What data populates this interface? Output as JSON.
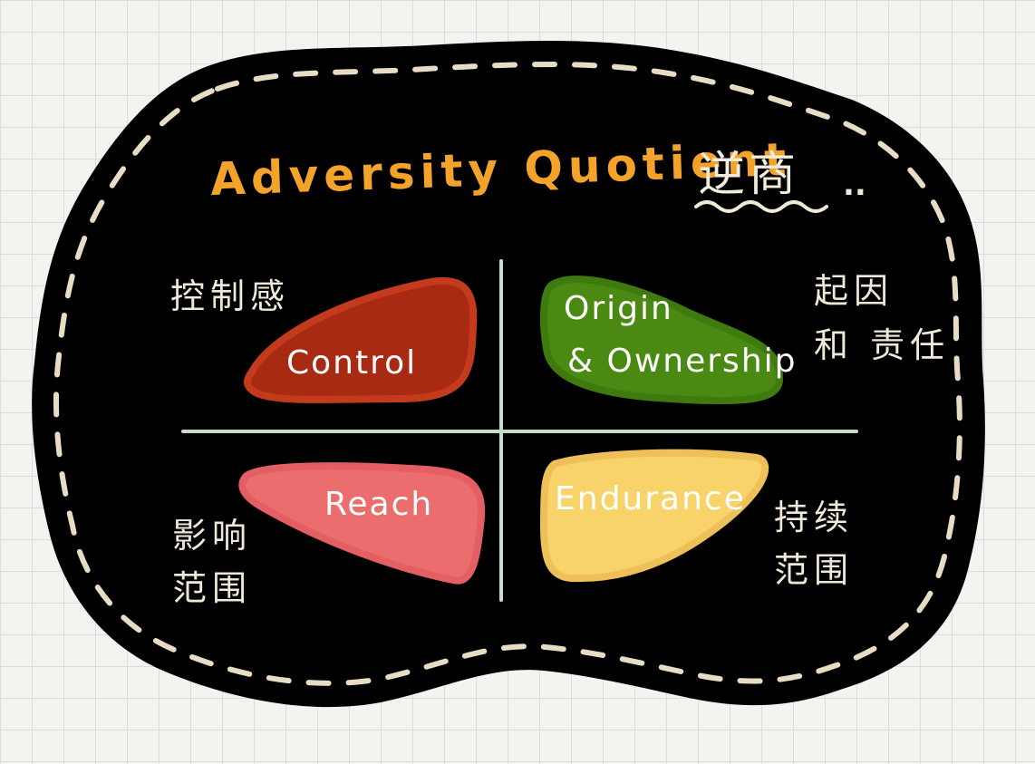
{
  "title": "Adversity Quotient",
  "title_cn": "逆商",
  "title_suffix": "..",
  "quadrants": {
    "control": {
      "label": "Control",
      "caption_cn": "控制感",
      "color": "#a92a12"
    },
    "origin": {
      "label_line1": "Origin",
      "label_line2": "& Ownership",
      "caption_line1": "起因",
      "caption_line2": "和 责任",
      "color": "#4a8a12"
    },
    "reach": {
      "label": "Reach",
      "caption_line1": "影响",
      "caption_line2": "范围",
      "color": "#ec6d6e"
    },
    "endurance": {
      "label": "Endurance",
      "caption_line1": "持续",
      "caption_line2": "范围",
      "color": "#f7d36a"
    }
  },
  "colors": {
    "board": "#000000",
    "stitch": "#e8dcc5",
    "axis": "#c5dcc8",
    "title": "#f3a32a"
  }
}
